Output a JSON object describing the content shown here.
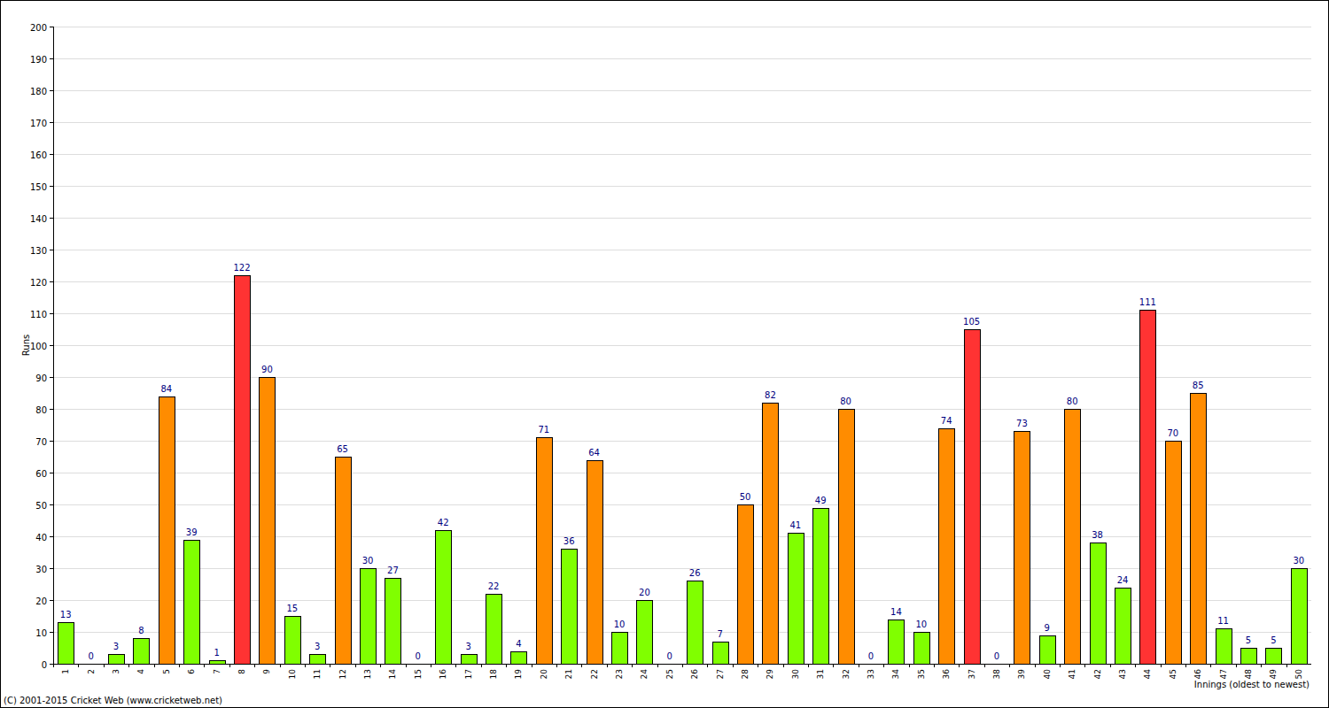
{
  "chart_data": {
    "type": "bar",
    "x_label": "Innings (oldest to newest)",
    "y_label": "Runs",
    "annotations": [
      "(C) 2001-2015 Cricket Web (www.cricketweb.net)"
    ],
    "categories": [
      "1",
      "2",
      "3",
      "4",
      "5",
      "6",
      "7",
      "8",
      "9",
      "10",
      "11",
      "12",
      "13",
      "14",
      "15",
      "16",
      "17",
      "18",
      "19",
      "20",
      "21",
      "22",
      "23",
      "24",
      "25",
      "26",
      "27",
      "28",
      "29",
      "30",
      "31",
      "32",
      "33",
      "34",
      "35",
      "36",
      "37",
      "38",
      "39",
      "40",
      "41",
      "42",
      "43",
      "44",
      "45",
      "46",
      "47",
      "48",
      "49",
      "50"
    ],
    "values": [
      13,
      0,
      3,
      8,
      84,
      39,
      1,
      122,
      90,
      15,
      3,
      65,
      30,
      27,
      0,
      42,
      3,
      22,
      4,
      71,
      36,
      64,
      10,
      20,
      0,
      26,
      7,
      50,
      82,
      41,
      49,
      80,
      0,
      14,
      10,
      74,
      105,
      0,
      73,
      9,
      80,
      38,
      24,
      111,
      70,
      85,
      11,
      5,
      5,
      30
    ],
    "colors": [
      "#80ff00",
      "#80ff00",
      "#80ff00",
      "#80ff00",
      "#ff8c00",
      "#80ff00",
      "#80ff00",
      "#ff3333",
      "#ff8c00",
      "#80ff00",
      "#80ff00",
      "#ff8c00",
      "#80ff00",
      "#80ff00",
      "#80ff00",
      "#80ff00",
      "#80ff00",
      "#80ff00",
      "#80ff00",
      "#ff8c00",
      "#80ff00",
      "#ff8c00",
      "#80ff00",
      "#80ff00",
      "#80ff00",
      "#80ff00",
      "#80ff00",
      "#ff8c00",
      "#ff8c00",
      "#80ff00",
      "#80ff00",
      "#ff8c00",
      "#80ff00",
      "#80ff00",
      "#80ff00",
      "#ff8c00",
      "#ff3333",
      "#80ff00",
      "#ff8c00",
      "#80ff00",
      "#ff8c00",
      "#80ff00",
      "#80ff00",
      "#ff3333",
      "#ff8c00",
      "#ff8c00",
      "#80ff00",
      "#80ff00",
      "#80ff00",
      "#80ff00"
    ],
    "ylim": [
      0,
      200
    ],
    "yticks": [
      0,
      10,
      20,
      30,
      40,
      50,
      60,
      70,
      80,
      90,
      100,
      110,
      120,
      130,
      140,
      150,
      160,
      170,
      180,
      190,
      200
    ],
    "grid": true,
    "data_labels": true
  }
}
